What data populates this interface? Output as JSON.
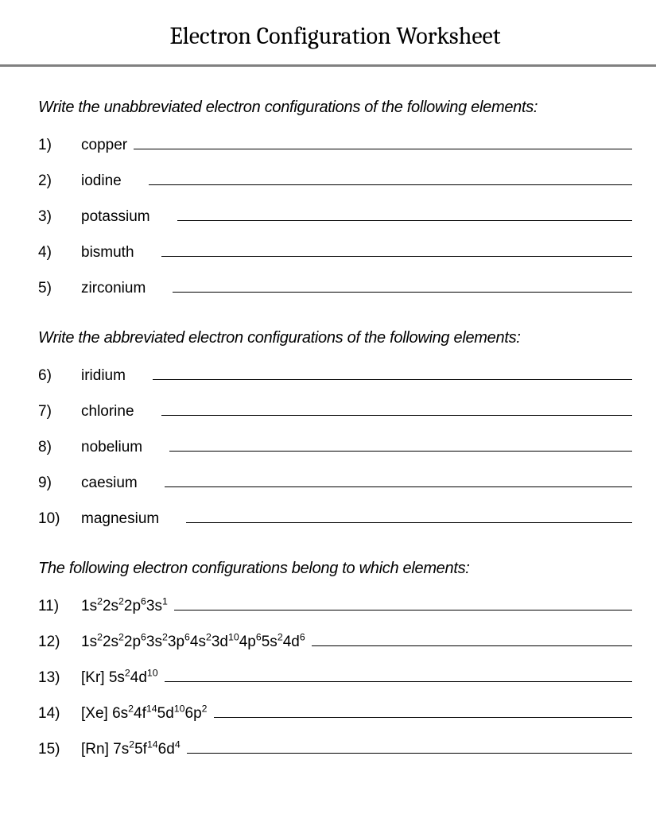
{
  "title": "Electron Configuration Worksheet",
  "sections": [
    {
      "prompt": "Write the unabbreviated electron configurations of the following elements:",
      "items": [
        {
          "num": "1)",
          "label": "copper",
          "offset": false
        },
        {
          "num": "2)",
          "label": "iodine",
          "offset": true
        },
        {
          "num": "3)",
          "label": "potassium",
          "offset": true
        },
        {
          "num": "4)",
          "label": "bismuth",
          "offset": true
        },
        {
          "num": "5)",
          "label": "zirconium",
          "offset": true
        }
      ]
    },
    {
      "prompt": "Write the abbreviated electron configurations of the following elements:",
      "items": [
        {
          "num": "6)",
          "label": "iridium",
          "offset": true
        },
        {
          "num": "7)",
          "label": "chlorine",
          "offset": true
        },
        {
          "num": "8)",
          "label": "nobelium",
          "offset": true
        },
        {
          "num": "9)",
          "label": "caesium",
          "offset": true
        },
        {
          "num": "10)",
          "label": "magnesium",
          "offset": true
        }
      ]
    },
    {
      "prompt": "The following electron configurations belong to which elements:",
      "items": [
        {
          "num": "11)",
          "config": "1s^2 2s^2 2p^6 3s^1",
          "offset": false
        },
        {
          "num": "12)",
          "config": "1s^2 2s^2 2p^6 3s^2 3p^6 4s^2 3d^10 4p^6 5s^2 4d^6",
          "offset": false
        },
        {
          "num": "13)",
          "config": "[Kr] 5s^2 4d^10",
          "offset": false
        },
        {
          "num": "14)",
          "config": "[Xe] 6s^2 4f^14 5d^10 6p^2",
          "offset": false
        },
        {
          "num": "15)",
          "config": "[Rn]  7s^2 5f^14 6d^4",
          "offset": false
        }
      ]
    }
  ]
}
